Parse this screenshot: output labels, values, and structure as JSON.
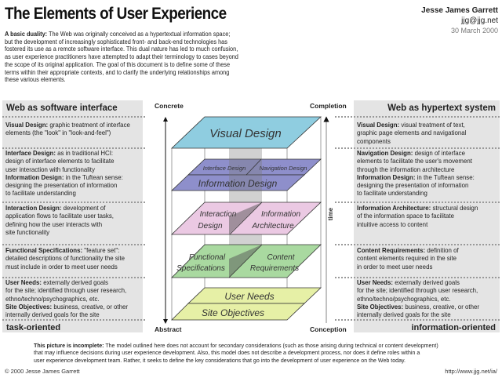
{
  "header": {
    "title": "The Elements of User Experience",
    "author": "Jesse James Garrett",
    "email": "jjg@jjg.net",
    "date": "30 March 2000"
  },
  "intro": {
    "term": "A basic duality:",
    "lines": [
      " The Web was originally conceived as a hypertextual information space;",
      "but the development of increasingly sophisticated front- and back-end technologies has",
      "fostered its use as a remote software interface. This dual nature has led to much confusion,",
      "as user experience practitioners have attempted to adapt their terminology to cases beyond",
      "the scope of its original application. The goal of this document is to define some of these",
      "terms within their appropriate contexts, and to clarify the underlying relationships among",
      "these various elements."
    ]
  },
  "left_panel": {
    "heading": "Web as software interface",
    "footer": "task-oriented",
    "rows": [
      [
        {
          "term": "Visual Design:",
          "lines": [
            " graphic treatment of interface",
            "elements (the \"look\" in \"look-and-feel\")"
          ]
        }
      ],
      [
        {
          "term": "Interface Design:",
          "lines": [
            " as in traditional HCI:",
            "design of interface elements to facilitate",
            "user interaction with functionality"
          ]
        },
        {
          "term": "Information Design:",
          "lines": [
            " in the Tuftean sense:",
            "designing the presentation of information",
            "to facilitate understanding"
          ]
        }
      ],
      [
        {
          "term": "Interaction Design:",
          "lines": [
            " development of",
            "application flows to facilitate user tasks,",
            "defining how the user interacts with",
            "site functionality"
          ]
        }
      ],
      [
        {
          "term": "Functional Specifications:",
          "lines": [
            " \"feature set\":",
            "detailed descriptions of functionality the site",
            "must include in order to meet user needs"
          ]
        }
      ],
      [
        {
          "term": "User Needs:",
          "lines": [
            " externally derived goals",
            "for the site; identified through user research,",
            "ethno/techno/psychographics, etc."
          ]
        },
        {
          "term": "Site Objectives:",
          "lines": [
            " business, creative, or other",
            "internally derived goals for the site"
          ]
        }
      ]
    ]
  },
  "right_panel": {
    "heading": "Web as hypertext system",
    "footer": "information-oriented",
    "rows": [
      [
        {
          "term": "Visual Design:",
          "lines": [
            " visual treatment of text,",
            "graphic page elements and navigational",
            "components"
          ]
        }
      ],
      [
        {
          "term": "Navigation Design:",
          "lines": [
            " design of interface",
            "elements to facilitate the user's movement",
            "through the information architecture"
          ]
        },
        {
          "term": "Information Design:",
          "lines": [
            " in the Tuftean sense:",
            "designing the presentation of information",
            "to facilitate understanding"
          ]
        }
      ],
      [
        {
          "term": "Information Architecture:",
          "lines": [
            " structural design",
            "of the information space to facilitate",
            "intuitive access to content"
          ]
        }
      ],
      [
        {
          "term": "Content Requirements:",
          "lines": [
            " definition of",
            "content elements required in the site",
            "in order to meet user needs"
          ]
        }
      ],
      [
        {
          "term": "User Needs:",
          "lines": [
            " externally derived goals",
            "for the site; identified through user research,",
            "ethno/techno/psychographics, etc."
          ]
        },
        {
          "term": "Site Objectives:",
          "lines": [
            " business, creative, or other",
            "internally derived goals for the site"
          ]
        }
      ]
    ]
  },
  "diagram": {
    "axis_left_top": "Concrete",
    "axis_left_bottom": "Abstract",
    "axis_right_top": "Completion",
    "axis_right_bottom": "Conception",
    "axis_right_label": "time",
    "planes": {
      "visual_design": "Visual Design",
      "interface_design": "Interface Design",
      "navigation_design": "Navigation Design",
      "information_design": "Information Design",
      "interaction_design": [
        "Interaction",
        "Design"
      ],
      "information_architecture": [
        "Information",
        "Architecture"
      ],
      "functional_specifications": [
        "Functional",
        "Specifications"
      ],
      "content_requirements": [
        "Content",
        "Requirements"
      ],
      "user_needs": "User Needs",
      "site_objectives": "Site Objectives"
    },
    "colors": {
      "visual": "#8fcde0",
      "interface": "#8e8fcb",
      "interaction": "#ebc9e3",
      "functional": "#a9d9a0",
      "needs": "#e6f0a6"
    }
  },
  "footnote": {
    "term": "This picture is incomplete:",
    "lines": [
      " The model outlined here does not account for secondary considerations (such as those arising during technical or content development)",
      "that may influence decisions during user experience development. Also, this model does not describe a development process, nor does it define roles within a",
      "user experience development team. Rather, it seeks to define the key considerations that go into the development of user experience on the Web today."
    ]
  },
  "footer": {
    "copyright": "© 2000 Jesse James Garrett",
    "url": "http://www.jjg.net/ia/"
  }
}
